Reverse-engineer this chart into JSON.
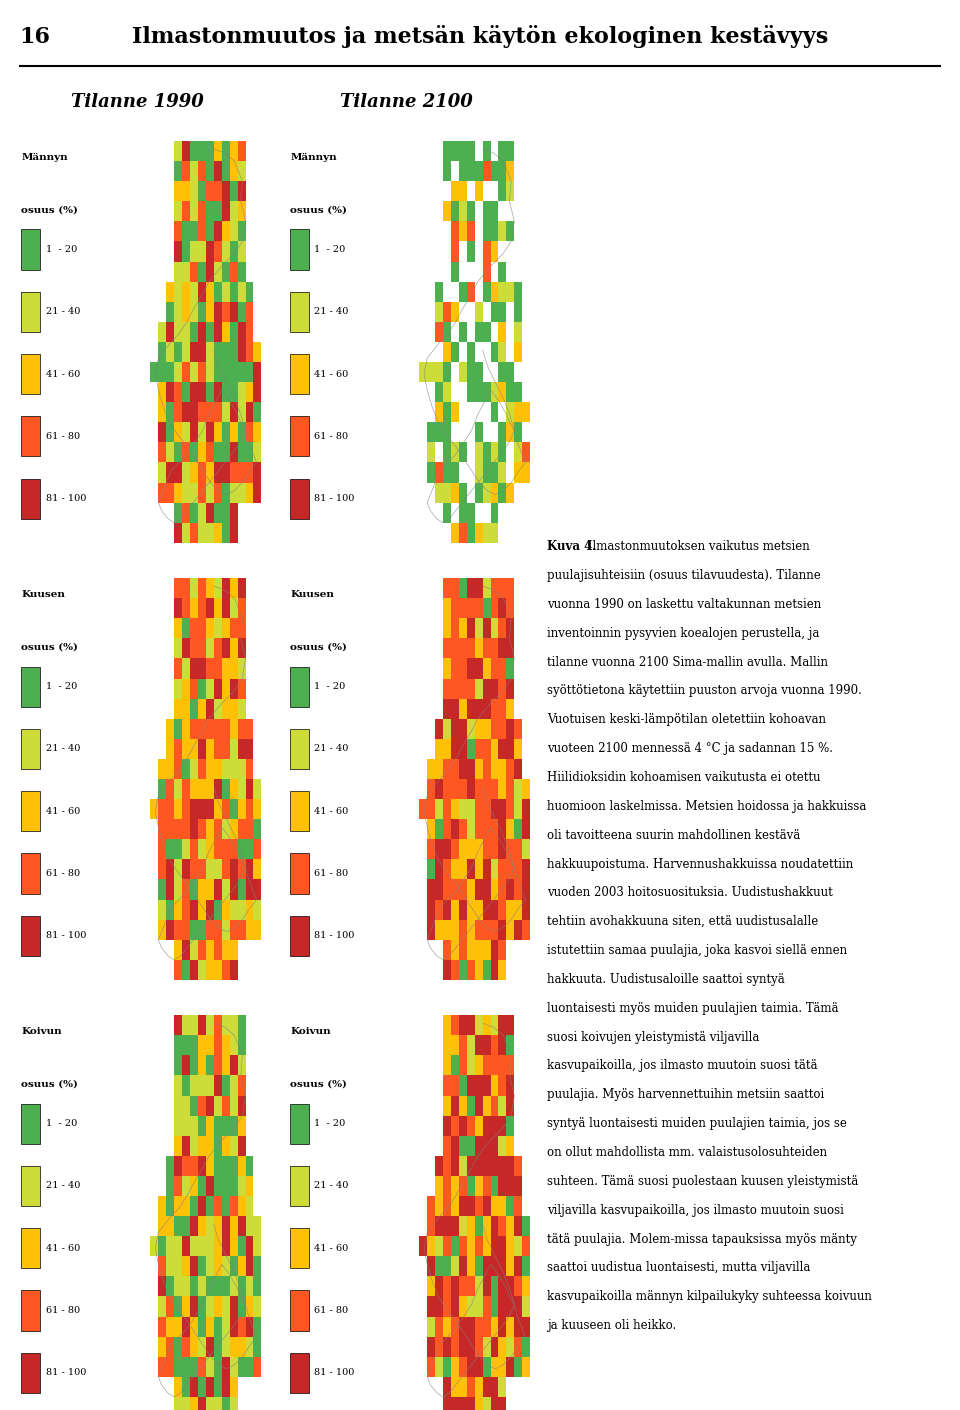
{
  "page_number": "16",
  "header_title": "Ilmastonmuutos ja metsän käytön ekologinen kestävyys",
  "col1_title": "Tilanne 1990",
  "col2_title": "Tilanne 2100",
  "row_labels": [
    "Männyn\nosuus (%)",
    "Kuusen\nosuus (%)",
    "Koivun\nosuus (%)"
  ],
  "legend_labels": [
    "1  - 20",
    "21 - 40",
    "41 - 60",
    "61 - 80",
    "81 - 100"
  ],
  "legend_colors": [
    "#4CAF50",
    "#CDDC39",
    "#FFC107",
    "#FF5722",
    "#C62828"
  ],
  "caption_bold": "Kuva 4.",
  "caption_text": " Ilmastonmuutoksen vaikutus metsien puulajisuhteisiin (osuus tilavuudesta). Tilanne vuonna 1990 on laskettu valtakunnan metsien inventoinnin pysyvien koealojen perustella, ja tilanne vuonna 2100 Sima-mallin avulla. Mallin syöttötietona käytettiin puuston arvoja vuonna 1990. Vuotuisen keski-lämpötilan oletettiin kohoavan vuoteen 2100 mennessä 4 °C ja sadannan 15 %. Hiilidioksidin kohoamisen vaikutusta ei otettu huomioon laskelmissa. Metsien hoidossa ja hakkuissa oli tavoitteena suurin mahdollinen kestävä hakkuupoistuma. Harvennushakkuissa noudatettiin vuoden 2003 hoitosuosituksia. Uudistushakkuut tehtiin avohakkuuna siten, että uudistusalalle istutettiin samaa puulajia, joka kasvoi siellä ennen hakkuuta. Uudistusaloille saattoi syntyä luontaisesti myös muiden puulajien taimia. Tämä suosi koivujen yleistymistä viljavilla kasvupaikoilla, jos ilmasto muutoin suosi tätä puulajia. Myös harvennettuihin metsiin saattoi syntyä luontaisesti muiden puulajien taimia, jos se on ollut mahdollista mm. valaistusolosuhteiden suhteen. Tämä suosi puolestaan kuusen yleistymistä viljavilla kasvupaikoilla, jos ilmasto muutoin suosi tätä puulajia. Molem-missa tapauksissa myös mänty saattoi uudistua luontaisesti, mutta viljavilla kasvupaikoilla männyn kilpailukyky suhteessa koivuun ja kuuseen oli heikko.",
  "bg_color": "#FFFFFF",
  "header_line_color": "#000000",
  "map_bg": "#F5F5F5",
  "map_colors_1990_mannyn": "mixed_red_green",
  "map_colors_2100_mannyn": "more_white_green",
  "map_colors_1990_kuusen": "mixed_orange",
  "map_colors_2100_kuusen": "more_orange_red",
  "map_colors_1990_koivun": "mixed_yellow_green",
  "map_colors_2100_koivun": "more_red"
}
